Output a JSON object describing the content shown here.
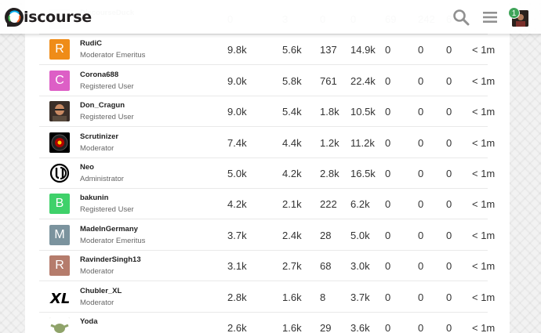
{
  "header": {
    "logo_text": "iscourse",
    "notification_count": "1"
  },
  "columns": [
    "likes_received",
    "likes_given",
    "topics_entered",
    "posts_read",
    "topics_created",
    "replies",
    "days_visited",
    "time"
  ],
  "rows": [
    {
      "username": "DiscourseDuck",
      "title": "",
      "avatar_letter": "",
      "avatar_color": "#e8e8e8",
      "stats": [
        "0",
        "3",
        "0",
        "0",
        "69",
        "242",
        "6",
        ""
      ],
      "faded": true,
      "highlight": true
    },
    {
      "username": "RudiC",
      "title": "Moderator Emeritus",
      "avatar_letter": "R",
      "avatar_color": "#ef8c18",
      "stats": [
        "9.8k",
        "5.6k",
        "137",
        "14.9k",
        "0",
        "0",
        "0",
        "< 1m"
      ]
    },
    {
      "username": "Corona688",
      "title": "Registered User",
      "avatar_letter": "C",
      "avatar_color": "#dd5fc6",
      "stats": [
        "9.0k",
        "5.8k",
        "761",
        "22.4k",
        "0",
        "0",
        "0",
        "< 1m"
      ]
    },
    {
      "username": "Don_Cragun",
      "title": "Registered User",
      "avatar_letter": "",
      "avatar_color": "#6d5a4a",
      "stats": [
        "9.0k",
        "5.4k",
        "1.8k",
        "10.5k",
        "0",
        "0",
        "0",
        "< 1m"
      ]
    },
    {
      "username": "Scrutinizer",
      "title": "Moderator",
      "avatar_letter": "",
      "avatar_color": "#000000",
      "stats": [
        "7.4k",
        "4.4k",
        "1.2k",
        "11.2k",
        "0",
        "0",
        "0",
        "< 1m"
      ]
    },
    {
      "username": "Neo",
      "title": "Administrator",
      "avatar_letter": "",
      "avatar_color": "#ffffff",
      "stats": [
        "5.0k",
        "4.2k",
        "2.8k",
        "16.5k",
        "0",
        "0",
        "0",
        "< 1m"
      ]
    },
    {
      "username": "bakunin",
      "title": "Registered User",
      "avatar_letter": "B",
      "avatar_color": "#3fd16a",
      "stats": [
        "4.2k",
        "2.1k",
        "222",
        "6.2k",
        "0",
        "0",
        "0",
        "< 1m"
      ]
    },
    {
      "username": "MadeInGermany",
      "title": "Moderator Emeritus",
      "avatar_letter": "M",
      "avatar_color": "#7b939e",
      "stats": [
        "3.7k",
        "2.4k",
        "28",
        "5.0k",
        "0",
        "0",
        "0",
        "< 1m"
      ]
    },
    {
      "username": "RavinderSingh13",
      "title": "Moderator",
      "avatar_letter": "R",
      "avatar_color": "#b57c6c",
      "stats": [
        "3.1k",
        "2.7k",
        "68",
        "3.0k",
        "0",
        "0",
        "0",
        "< 1m"
      ]
    },
    {
      "username": "Chubler_XL",
      "title": "Moderator",
      "avatar_letter": "XL",
      "avatar_color": "#ffffff",
      "stats": [
        "2.8k",
        "1.6k",
        "8",
        "3.7k",
        "0",
        "0",
        "0",
        "< 1m"
      ]
    },
    {
      "username": "Yoda",
      "title": "",
      "avatar_letter": "",
      "avatar_color": "#9aa07a",
      "stats": [
        "2.6k",
        "1.6k",
        "29",
        "3.6k",
        "0",
        "0",
        "0",
        "< 1m"
      ]
    }
  ]
}
